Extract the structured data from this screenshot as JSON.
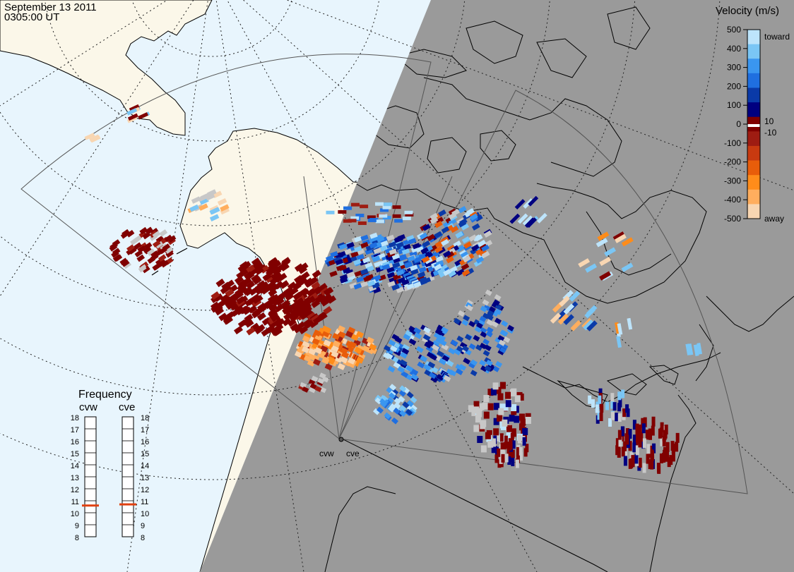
{
  "header": {
    "date": "September 13 2011",
    "time": "0305:00 UT"
  },
  "colorbar": {
    "title": "Velocity (m/s)",
    "ticks": [
      "500",
      "400",
      "300",
      "200",
      "100",
      "0",
      "-100",
      "-200",
      "-300",
      "-400",
      "-500"
    ],
    "label_top": "toward",
    "label_bottom": "away",
    "label_pos": "10",
    "label_neg": "-10",
    "colors": [
      "#f8d6b2",
      "#ffae5e",
      "#ff8c1a",
      "#e85d0a",
      "#c83a10",
      "#9e1c12",
      "#800000",
      "#000080",
      "#0a3aa8",
      "#1f6fe0",
      "#3a96f0",
      "#7ac6f5",
      "#bde4fb"
    ]
  },
  "frequency_panel": {
    "title": "Frequency",
    "radars": [
      "cvw",
      "cve"
    ],
    "scale": [
      "18",
      "17",
      "16",
      "15",
      "14",
      "13",
      "12",
      "11",
      "10",
      "9",
      "8"
    ],
    "current": {
      "cvw": 10.6,
      "cve": 10.7
    },
    "marker_color": "#e04010"
  },
  "map": {
    "radar_labels": [
      "cvw",
      "cve"
    ],
    "colors": {
      "ocean": "#e8f5fd",
      "land": "#fbf7e9",
      "night": "#9a9a9a",
      "coast": "#000000",
      "grid": "#222222",
      "fov": "#555555",
      "gray_scatter": "#c8c8c8"
    }
  }
}
